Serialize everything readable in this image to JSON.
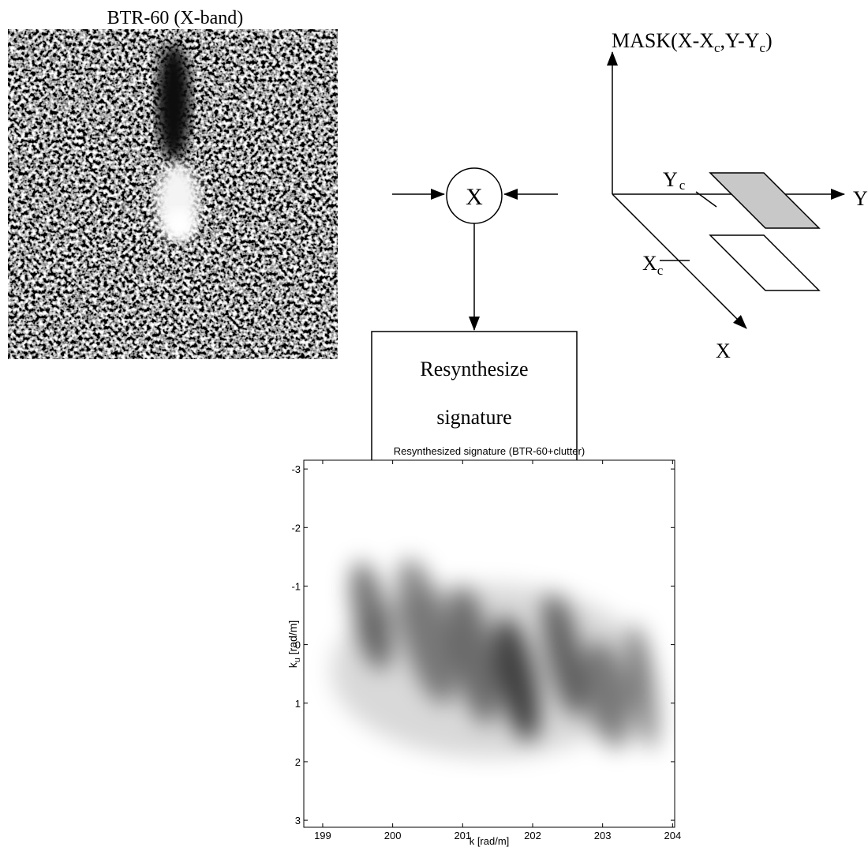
{
  "image": {
    "title": "BTR-60 (X-band)"
  },
  "multiplier": {
    "label": "X"
  },
  "process": {
    "lines": [
      "Resynthesize",
      "signature"
    ]
  },
  "mask": {
    "label": [
      "MASK(X-X",
      "c",
      ",Y-Y",
      "c",
      ")"
    ],
    "yc": [
      "Y",
      "c"
    ],
    "xc": [
      "X",
      "c"
    ],
    "y_axis": "Y",
    "x_axis": "X"
  },
  "chart_data": {
    "type": "heatmap",
    "title": "Resynthesized signature (BTR-60+clutter)",
    "xlabel": "k [rad/m]",
    "ylabel": [
      "k",
      "u",
      " [rad/m]"
    ],
    "xlim": [
      198.73,
      204.03
    ],
    "xticks": [
      199,
      200,
      201,
      202,
      203,
      204
    ],
    "ylim": [
      -3.15,
      3.12
    ],
    "yticks": [
      -3,
      -2,
      -1,
      0,
      1,
      2,
      3
    ],
    "y_reversed": true
  }
}
